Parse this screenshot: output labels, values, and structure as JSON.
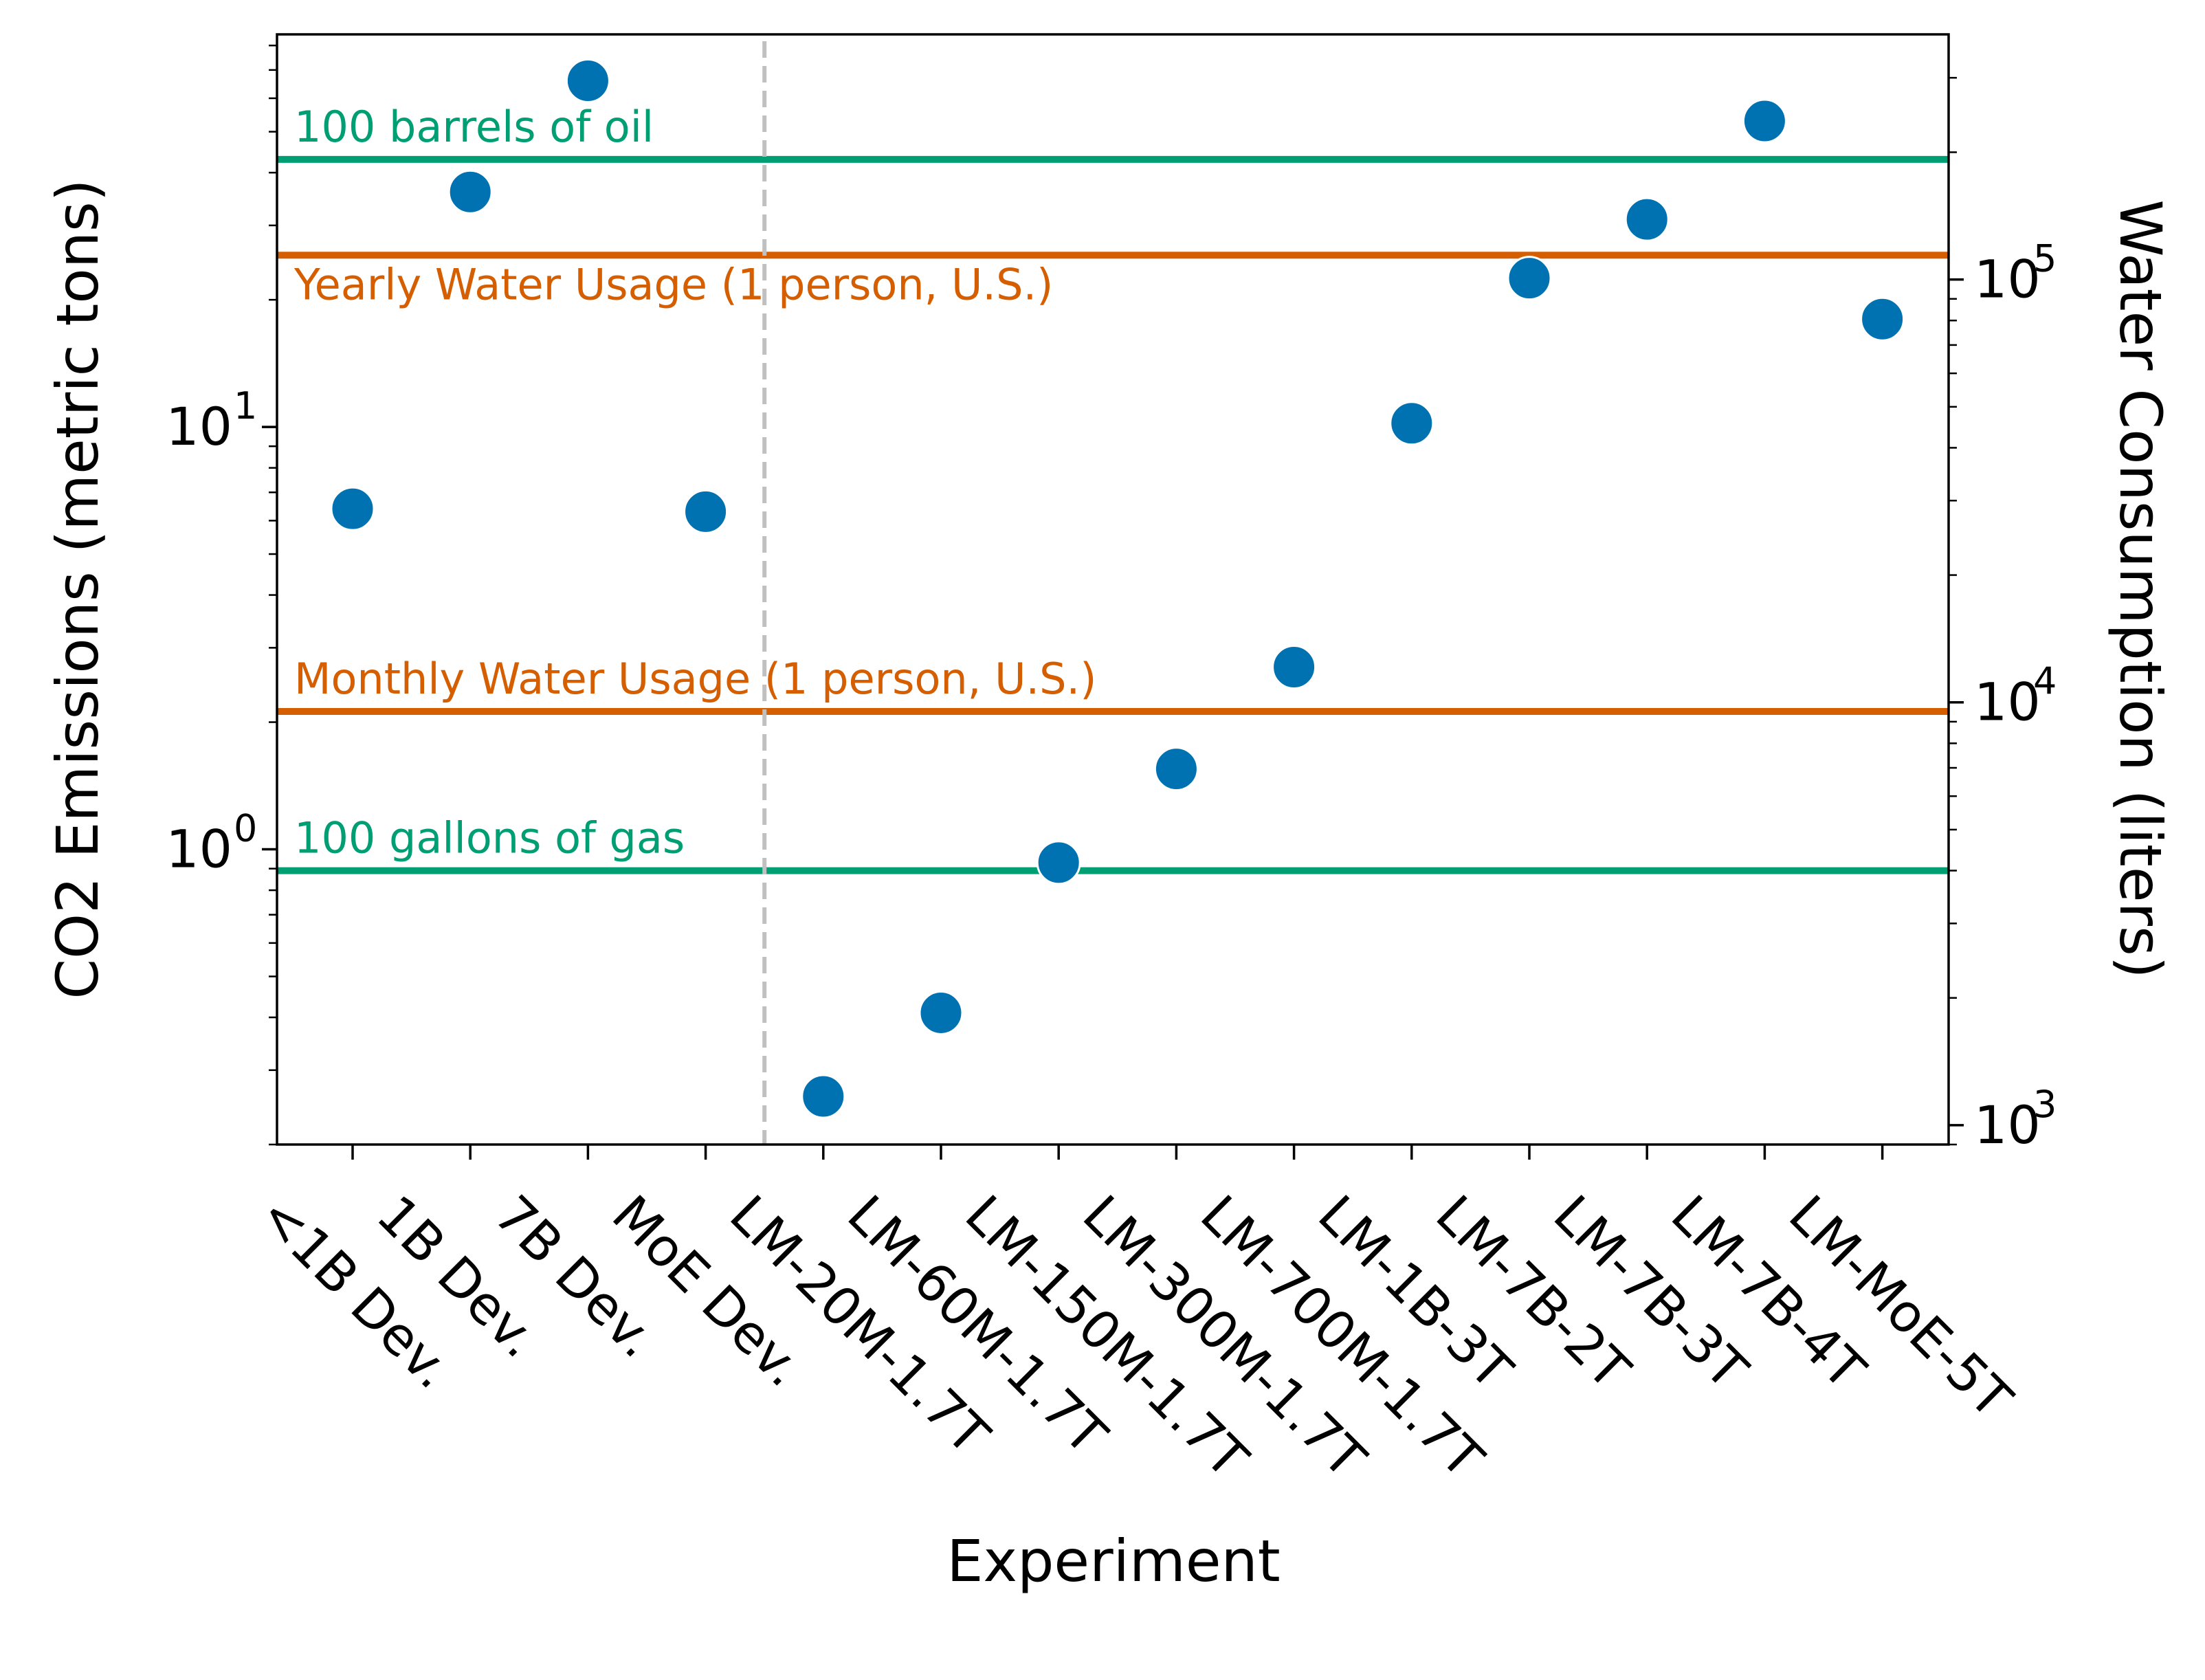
{
  "chart_data": {
    "type": "scatter",
    "xlabel": "Experiment",
    "ylabel_left": "CO2 Emissions (metric tons)",
    "ylabel_right": "Water Consumption (liters)",
    "yscale": "log",
    "ylim_left": [
      0.2,
      85
    ],
    "ylim_right": [
      900,
      380000
    ],
    "categories": [
      "<1B Dev.",
      "1B Dev.",
      "7B Dev.",
      "MoE Dev.",
      "LM-20M-1.7T",
      "LM-60M-1.7T",
      "LM-150M-1.7T",
      "LM-300M-1.7T",
      "LM-700M-1.7T",
      "LM-1B-3T",
      "LM-7B-2T",
      "LM-7B-3T",
      "LM-7B-4T",
      "LM-MoE-5T"
    ],
    "values": [
      6.4,
      36,
      66,
      6.3,
      0.26,
      0.41,
      0.93,
      1.55,
      2.7,
      10.2,
      22.5,
      31,
      53,
      18
    ],
    "left_ticks": [
      {
        "value": 1,
        "label": "10",
        "exp": "0"
      },
      {
        "value": 10,
        "label": "10",
        "exp": "1"
      }
    ],
    "right_ticks": [
      {
        "value": 1000,
        "label": "10",
        "exp": "3"
      },
      {
        "value": 10000,
        "label": "10",
        "exp": "4"
      },
      {
        "value": 100000,
        "label": "10",
        "exp": "5"
      }
    ],
    "reference_lines": [
      {
        "label": "100 barrels of oil",
        "value": 43,
        "color": "#009E73",
        "label_pos": "above"
      },
      {
        "label": "Yearly Water Usage (1 person, U.S.)",
        "value": 25.5,
        "color": "#D55E00",
        "label_pos": "below"
      },
      {
        "label": "Monthly Water Usage (1 person, U.S.)",
        "value": 2.12,
        "color": "#D55E00",
        "label_pos": "above"
      },
      {
        "label": "100 gallons of gas",
        "value": 0.89,
        "color": "#009E73",
        "label_pos": "above"
      }
    ],
    "divider_after_index": 3,
    "point_color": "#0072B2",
    "divider_color": "#C0C0C0"
  }
}
